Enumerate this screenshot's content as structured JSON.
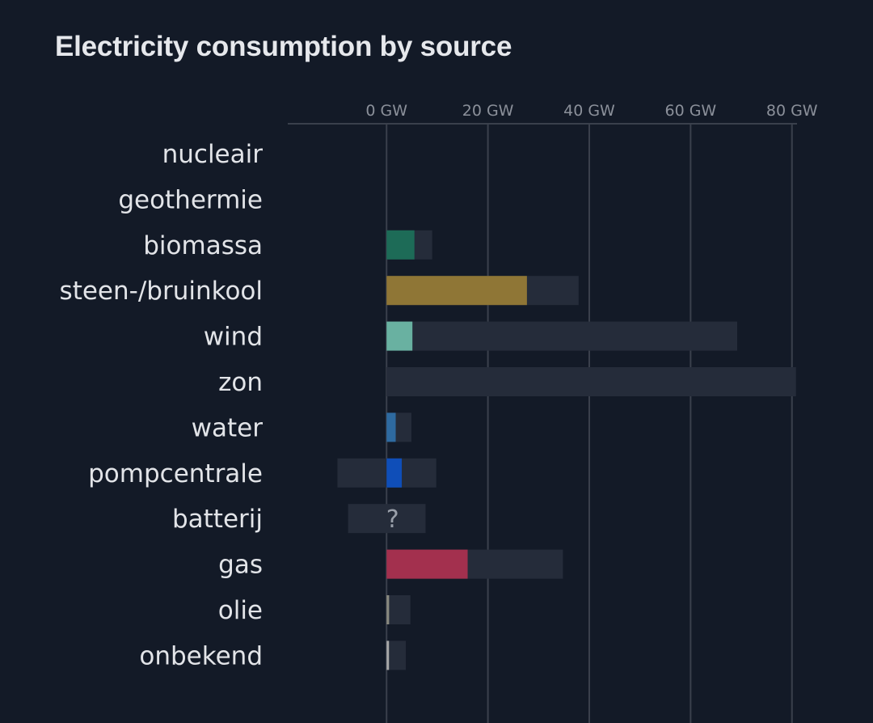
{
  "chart_data": {
    "type": "bar",
    "title": "Electricity consumption by source",
    "xlabel": "",
    "ylabel": "",
    "unit": "GW",
    "xlim": [
      -19.5,
      81
    ],
    "x_ticks": [
      0,
      20,
      40,
      60,
      80
    ],
    "x_tick_labels": [
      "0 GW",
      "20 GW",
      "40 GW",
      "60 GW",
      "80 GW"
    ],
    "grid": true,
    "categories": [
      "nucleair",
      "geothermie",
      "biomassa",
      "steen-/bruinkool",
      "wind",
      "zon",
      "water",
      "pompcentrale",
      "batterij",
      "gas",
      "olie",
      "onbekend"
    ],
    "series": [
      {
        "name": "capacity",
        "color": "#252c3a",
        "ranges": [
          [
            0,
            0
          ],
          [
            0,
            0
          ],
          [
            0,
            9.0
          ],
          [
            0,
            37.9
          ],
          [
            0,
            69.2
          ],
          [
            0,
            80.8
          ],
          [
            0,
            4.9
          ],
          [
            -9.7,
            9.8
          ],
          [
            -7.6,
            7.7
          ],
          [
            0,
            34.8
          ],
          [
            0,
            4.7
          ],
          [
            0,
            3.8
          ]
        ]
      },
      {
        "name": "consumption",
        "values": [
          0,
          0,
          5.5,
          27.7,
          5.1,
          0,
          1.8,
          3.0,
          null,
          16.0,
          0.5,
          0.4
        ],
        "colors": [
          "#1d6b57",
          "#1d6b57",
          "#1d6b57",
          "#8f7636",
          "#69b1a1",
          "#e8c444",
          "#2e6aa0",
          "#0f4eb8",
          "#7a7a7a",
          "#a3304e",
          "#8a8a80",
          "#a8a8a8"
        ]
      }
    ],
    "annotations": [
      {
        "category": "batterij",
        "text": "?"
      }
    ]
  }
}
